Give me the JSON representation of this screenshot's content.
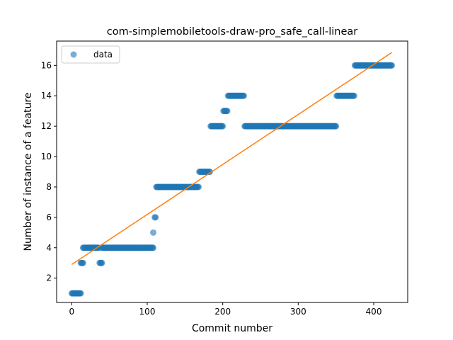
{
  "chart_data": {
    "type": "scatter",
    "title": "com-simplemobiletools-draw-pro_safe_call-linear",
    "xlabel": "Commit number",
    "ylabel": "Number of instance of a feature",
    "xlim": [
      -20,
      445
    ],
    "ylim": [
      0.4,
      17.6
    ],
    "xticks": [
      0,
      100,
      200,
      300,
      400
    ],
    "yticks": [
      2,
      4,
      6,
      8,
      10,
      12,
      14,
      16
    ],
    "legend": {
      "position": "top-left",
      "entries": [
        "data"
      ]
    },
    "grid": false,
    "colors": {
      "data": "#1f77b4",
      "fit": "#ff7f0e"
    },
    "series": [
      {
        "name": "data",
        "kind": "scatter",
        "segments": [
          {
            "x_start": 0,
            "x_end": 12,
            "y": 1
          },
          {
            "x_start": 12,
            "x_end": 15,
            "y": 3
          },
          {
            "x_start": 15,
            "x_end": 36,
            "y": 4
          },
          {
            "x_start": 37,
            "x_end": 40,
            "y": 3
          },
          {
            "x_start": 40,
            "x_end": 108,
            "y": 4
          },
          {
            "x_start": 108,
            "x_end": 108,
            "y": 5
          },
          {
            "x_start": 110,
            "x_end": 111,
            "y": 6
          },
          {
            "x_start": 112,
            "x_end": 168,
            "y": 8
          },
          {
            "x_start": 169,
            "x_end": 183,
            "y": 9
          },
          {
            "x_start": 184,
            "x_end": 200,
            "y": 12
          },
          {
            "x_start": 201,
            "x_end": 206,
            "y": 13
          },
          {
            "x_start": 207,
            "x_end": 228,
            "y": 14
          },
          {
            "x_start": 229,
            "x_end": 350,
            "y": 12
          },
          {
            "x_start": 351,
            "x_end": 374,
            "y": 14
          },
          {
            "x_start": 375,
            "x_end": 424,
            "y": 16
          }
        ]
      },
      {
        "name": "fit",
        "kind": "line",
        "x": [
          0,
          424
        ],
        "y": [
          2.9,
          16.85
        ]
      }
    ]
  }
}
